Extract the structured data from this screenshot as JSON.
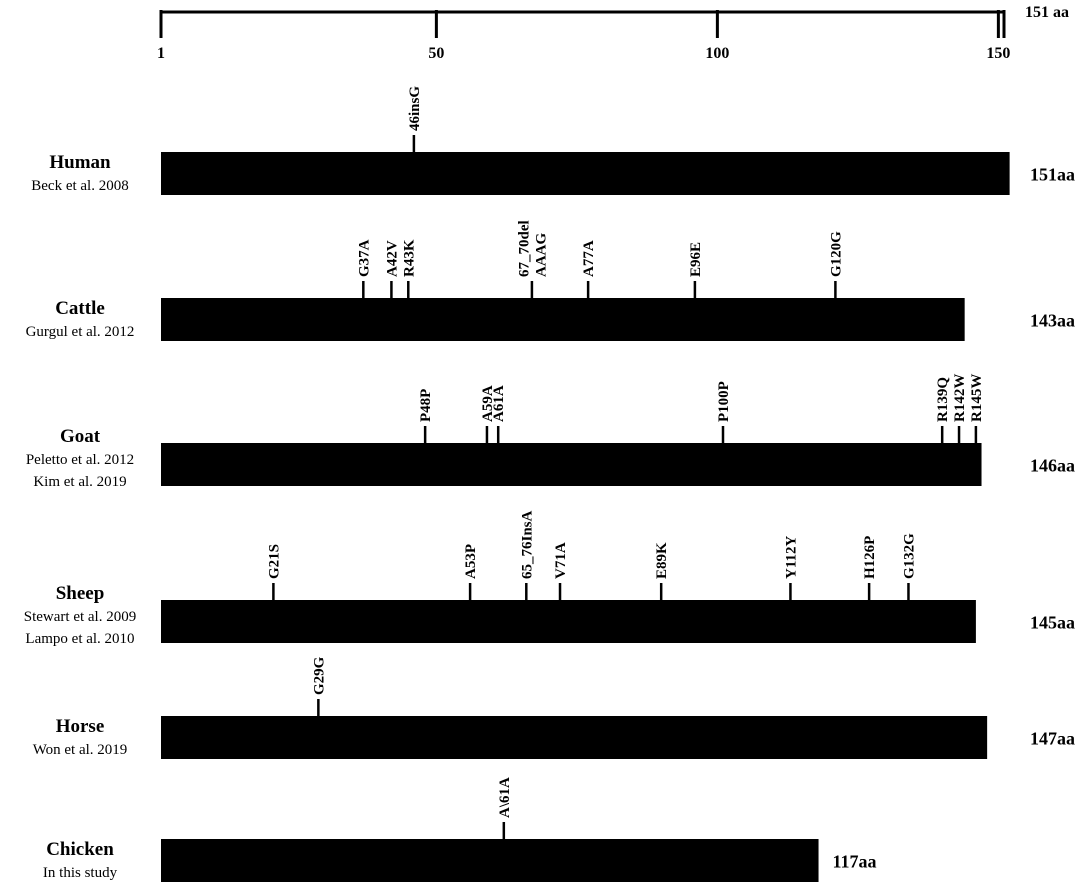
{
  "scale": {
    "total_label": "151 aa",
    "ticks": [
      {
        "pos": 1,
        "label": "1"
      },
      {
        "pos": 50,
        "label": "50"
      },
      {
        "pos": 100,
        "label": "100"
      },
      {
        "pos": 150,
        "label": "150"
      }
    ],
    "end_marker": 151
  },
  "species": [
    {
      "name": "Human",
      "citations": [
        "Beck et al. 2008"
      ],
      "length": 151,
      "length_label": "151aa",
      "mutations": [
        {
          "pos": 46,
          "lines": [
            "46insG"
          ]
        }
      ]
    },
    {
      "name": "Cattle",
      "citations": [
        "Gurgul et al. 2012"
      ],
      "length": 143,
      "length_label": "143aa",
      "mutations": [
        {
          "pos": 37,
          "lines": [
            "G37A"
          ]
        },
        {
          "pos": 42,
          "lines": [
            "A42V"
          ]
        },
        {
          "pos": 45,
          "lines": [
            "R43K"
          ]
        },
        {
          "pos": 67,
          "lines": [
            "67_70del",
            "AAAG"
          ]
        },
        {
          "pos": 77,
          "lines": [
            "A77A"
          ]
        },
        {
          "pos": 96,
          "lines": [
            "E96E"
          ]
        },
        {
          "pos": 121,
          "lines": [
            "G120G"
          ]
        }
      ]
    },
    {
      "name": "Goat",
      "citations": [
        "Peletto et al. 2012",
        "Kim et al. 2019"
      ],
      "length": 146,
      "length_label": "146aa",
      "mutations": [
        {
          "pos": 48,
          "lines": [
            "P48P"
          ]
        },
        {
          "pos": 59,
          "lines": [
            "A59A"
          ]
        },
        {
          "pos": 61,
          "lines": [
            "A61A"
          ]
        },
        {
          "pos": 101,
          "lines": [
            "P100P"
          ]
        },
        {
          "pos": 140,
          "lines": [
            "R139Q"
          ]
        },
        {
          "pos": 143,
          "lines": [
            "R142W"
          ]
        },
        {
          "pos": 146,
          "lines": [
            "R145W"
          ]
        }
      ]
    },
    {
      "name": "Sheep",
      "citations": [
        "Stewart et al. 2009",
        "Lampo et al. 2010"
      ],
      "length": 145,
      "length_label": "145aa",
      "mutations": [
        {
          "pos": 21,
          "lines": [
            "G21S"
          ]
        },
        {
          "pos": 56,
          "lines": [
            "A53P"
          ]
        },
        {
          "pos": 66,
          "lines": [
            "65_76InsA"
          ]
        },
        {
          "pos": 72,
          "lines": [
            "V71A"
          ]
        },
        {
          "pos": 90,
          "lines": [
            "E89K"
          ]
        },
        {
          "pos": 113,
          "lines": [
            "Y112Y"
          ]
        },
        {
          "pos": 127,
          "lines": [
            "H126P"
          ]
        },
        {
          "pos": 134,
          "lines": [
            "G132G"
          ]
        }
      ]
    },
    {
      "name": "Horse",
      "citations": [
        "Won et al. 2019"
      ],
      "length": 147,
      "length_label": "147aa",
      "mutations": [
        {
          "pos": 29,
          "lines": [
            "G29G"
          ]
        }
      ]
    },
    {
      "name": "Chicken",
      "citations": [
        "In this study"
      ],
      "length": 117,
      "length_label": "117aa",
      "mutations": [
        {
          "pos": 62,
          "lines": [
            "A\\61A"
          ]
        }
      ]
    }
  ]
}
